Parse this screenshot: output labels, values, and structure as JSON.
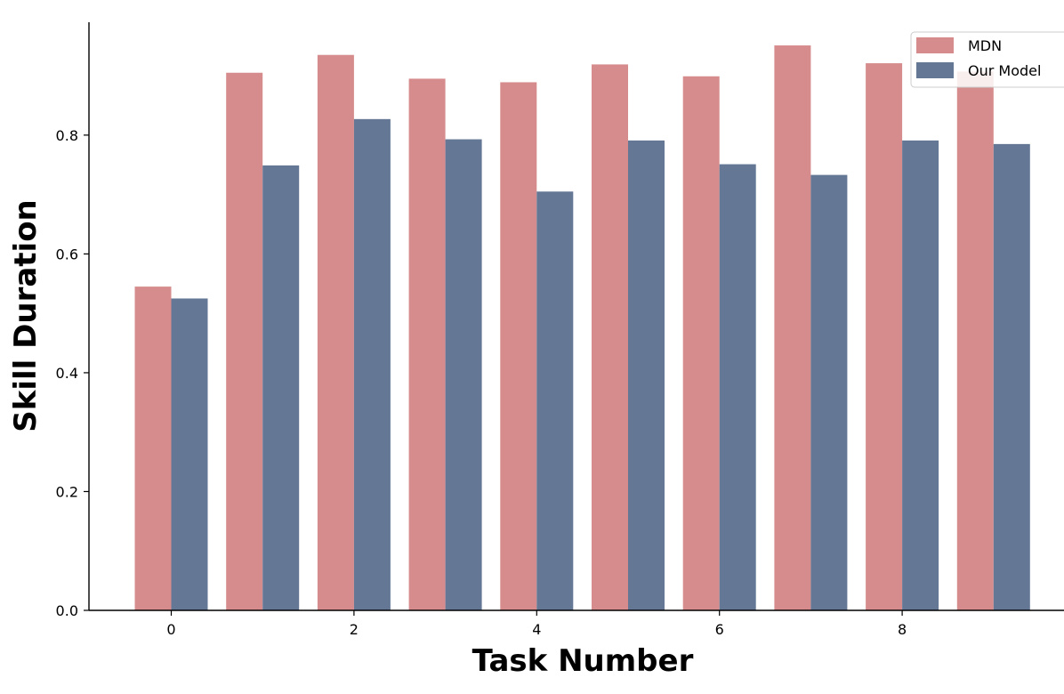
{
  "chart_data": {
    "type": "bar",
    "categories": [
      "0",
      "1",
      "2",
      "3",
      "4",
      "5",
      "6",
      "7",
      "8",
      "9"
    ],
    "series": [
      {
        "name": "MDN",
        "color": "#d68c8c",
        "values": [
          0.545,
          0.905,
          0.935,
          0.895,
          0.889,
          0.919,
          0.899,
          0.951,
          0.921,
          0.907
        ]
      },
      {
        "name": "Our Model",
        "color": "#647896",
        "values": [
          0.525,
          0.749,
          0.827,
          0.793,
          0.705,
          0.791,
          0.751,
          0.733,
          0.791,
          0.785
        ]
      }
    ],
    "xlabel": "Task Number",
    "ylabel": "Skill Duration",
    "xticks": [
      "0",
      "2",
      "4",
      "6",
      "8"
    ],
    "yticks": [
      "0.0",
      "0.2",
      "0.4",
      "0.6",
      "0.8"
    ],
    "ylim": [
      0,
      0.99
    ],
    "legend_position": "top-right",
    "grid": false
  }
}
